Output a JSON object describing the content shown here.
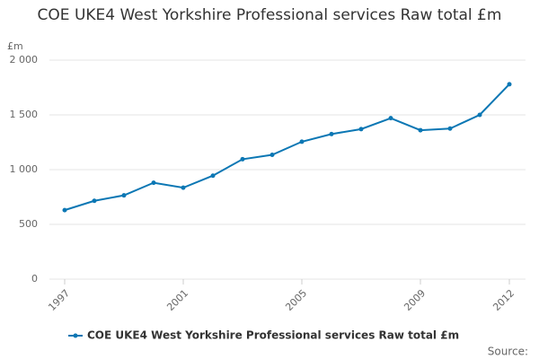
{
  "chart_data": {
    "type": "line",
    "title": "COE UKE4 West Yorkshire Professional services Raw total £m",
    "y_label": "£m",
    "x": [
      1997,
      1998,
      1999,
      2000,
      2001,
      2002,
      2003,
      2004,
      2005,
      2006,
      2007,
      2008,
      2009,
      2010,
      2011,
      2012
    ],
    "series": [
      {
        "name": "COE UKE4 West Yorkshire Professional services Raw total £m",
        "color": "#0b77b4",
        "values": [
          630,
          715,
          765,
          880,
          835,
          945,
          1095,
          1135,
          1255,
          1325,
          1370,
          1470,
          1360,
          1375,
          1500,
          1780
        ]
      }
    ],
    "xlim": [
      1997,
      2012
    ],
    "xticks": [
      1997,
      2001,
      2005,
      2009,
      2012
    ],
    "ylim": [
      0,
      2000
    ],
    "yticks": [
      0,
      500,
      {
        "value": 1000,
        "label": "1 000"
      },
      {
        "value": 1500,
        "label": "1 500"
      },
      {
        "value": 2000,
        "label": "2 000"
      }
    ],
    "grid": true,
    "source": "Source:"
  }
}
